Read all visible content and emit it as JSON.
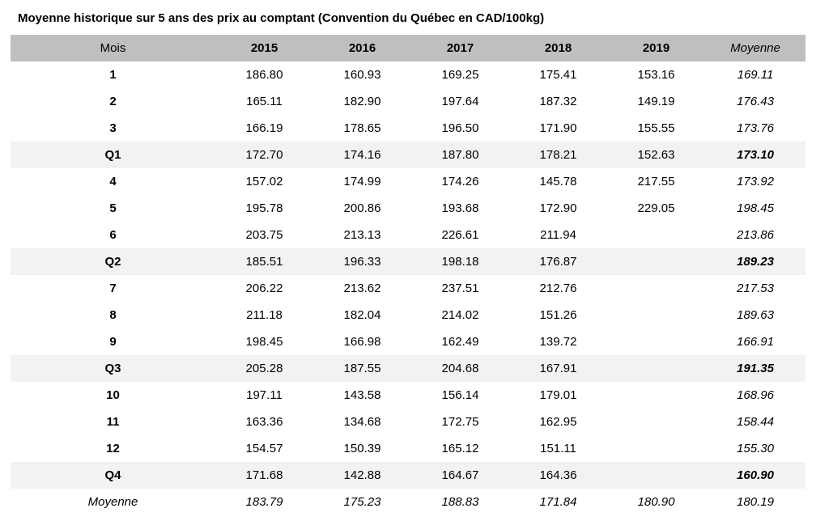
{
  "title": "Moyenne historique sur 5 ans des prix au comptant (Convention du Québec en CAD/100kg)",
  "colors": {
    "header_bg": "#bfbfbf",
    "quarter_row_bg": "#f2f2f2",
    "text": "#000000",
    "page_bg": "#ffffff"
  },
  "chart_data": {
    "type": "table",
    "title": "Moyenne historique sur 5 ans des prix au comptant (Convention du Québec en CAD/100kg)",
    "columns": [
      "Mois",
      "2015",
      "2016",
      "2017",
      "2018",
      "2019",
      "Moyenne"
    ],
    "rows": [
      {
        "label": "1",
        "type": "month",
        "values": [
          "186.80",
          "160.93",
          "169.25",
          "175.41",
          "153.16",
          "169.11"
        ]
      },
      {
        "label": "2",
        "type": "month",
        "values": [
          "165.11",
          "182.90",
          "197.64",
          "187.32",
          "149.19",
          "176.43"
        ]
      },
      {
        "label": "3",
        "type": "month",
        "values": [
          "166.19",
          "178.65",
          "196.50",
          "171.90",
          "155.55",
          "173.76"
        ]
      },
      {
        "label": "Q1",
        "type": "quarter",
        "values": [
          "172.70",
          "174.16",
          "187.80",
          "178.21",
          "152.63",
          "173.10"
        ]
      },
      {
        "label": "4",
        "type": "month",
        "values": [
          "157.02",
          "174.99",
          "174.26",
          "145.78",
          "217.55",
          "173.92"
        ]
      },
      {
        "label": "5",
        "type": "month",
        "values": [
          "195.78",
          "200.86",
          "193.68",
          "172.90",
          "229.05",
          "198.45"
        ]
      },
      {
        "label": "6",
        "type": "month",
        "values": [
          "203.75",
          "213.13",
          "226.61",
          "211.94",
          "",
          "213.86"
        ]
      },
      {
        "label": "Q2",
        "type": "quarter",
        "values": [
          "185.51",
          "196.33",
          "198.18",
          "176.87",
          "",
          "189.23"
        ]
      },
      {
        "label": "7",
        "type": "month",
        "values": [
          "206.22",
          "213.62",
          "237.51",
          "212.76",
          "",
          "217.53"
        ]
      },
      {
        "label": "8",
        "type": "month",
        "values": [
          "211.18",
          "182.04",
          "214.02",
          "151.26",
          "",
          "189.63"
        ]
      },
      {
        "label": "9",
        "type": "month",
        "values": [
          "198.45",
          "166.98",
          "162.49",
          "139.72",
          "",
          "166.91"
        ]
      },
      {
        "label": "Q3",
        "type": "quarter",
        "values": [
          "205.28",
          "187.55",
          "204.68",
          "167.91",
          "",
          "191.35"
        ]
      },
      {
        "label": "10",
        "type": "month",
        "values": [
          "197.11",
          "143.58",
          "156.14",
          "179.01",
          "",
          "168.96"
        ]
      },
      {
        "label": "11",
        "type": "month",
        "values": [
          "163.36",
          "134.68",
          "172.75",
          "162.95",
          "",
          "158.44"
        ]
      },
      {
        "label": "12",
        "type": "month",
        "values": [
          "154.57",
          "150.39",
          "165.12",
          "151.11",
          "",
          "155.30"
        ]
      },
      {
        "label": "Q4",
        "type": "quarter",
        "values": [
          "171.68",
          "142.88",
          "164.67",
          "164.36",
          "",
          "160.90"
        ]
      },
      {
        "label": "Moyenne",
        "type": "average",
        "values": [
          "183.79",
          "175.23",
          "188.83",
          "171.84",
          "180.90",
          "180.19"
        ]
      }
    ]
  }
}
